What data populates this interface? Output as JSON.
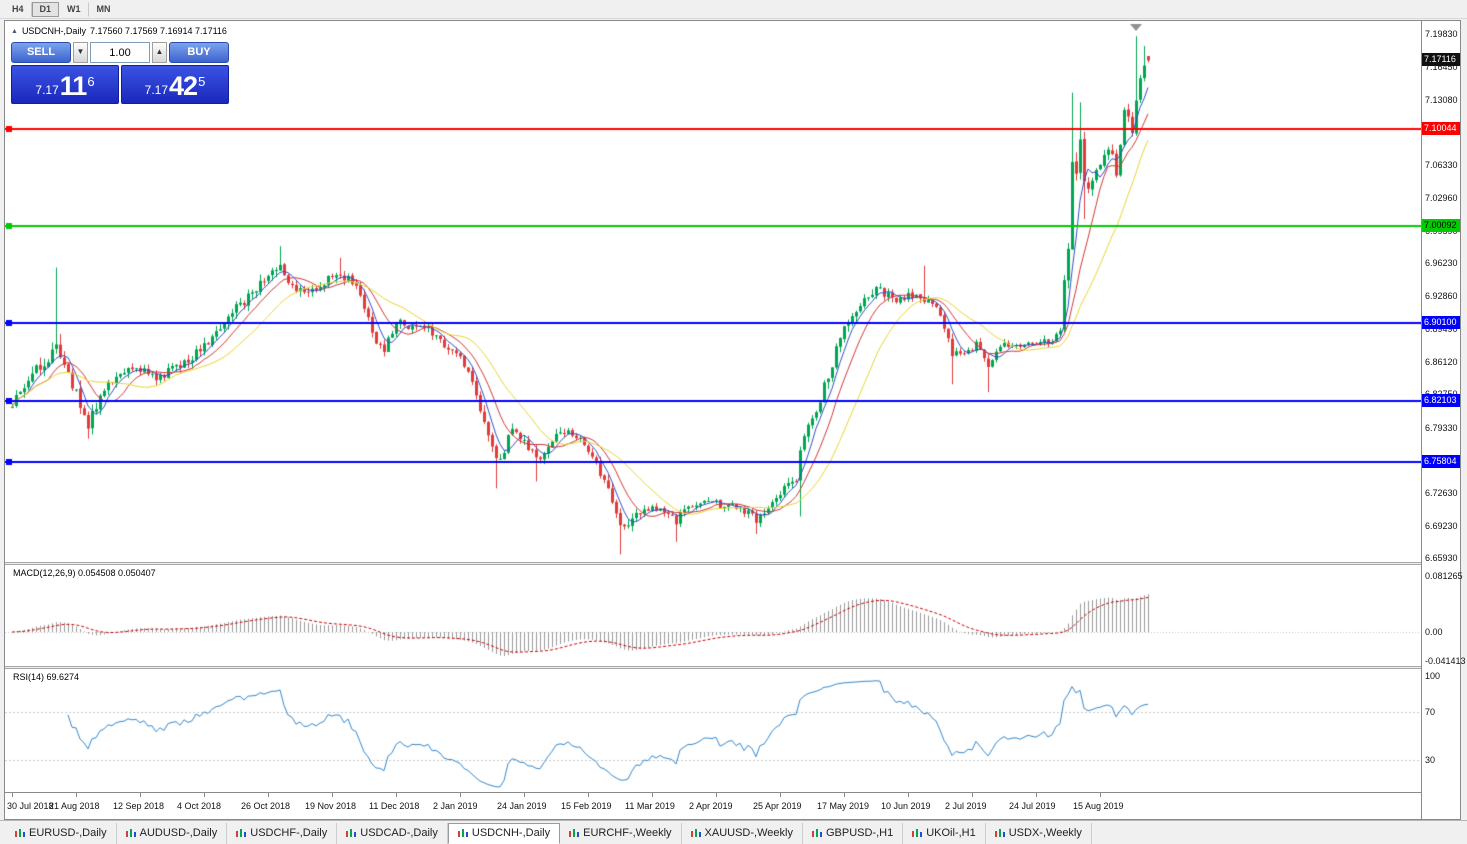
{
  "icons": {
    "title_marker": "▲",
    "spinner_down": "▼",
    "spinner_up": "▲"
  },
  "toolbar": {
    "timeframes": [
      {
        "label": "H4",
        "active": false
      },
      {
        "label": "D1",
        "active": true
      },
      {
        "label": "W1",
        "active": false
      },
      {
        "label": "MN",
        "active": false
      }
    ]
  },
  "chart_header": {
    "symbol": "USDCNH-,Daily",
    "ohlc": "7.17560 7.17569 7.16914 7.17116"
  },
  "one_click_trading": {
    "sell_label": "SELL",
    "buy_label": "BUY",
    "volume": "1.00",
    "bid": {
      "prefix": "7.17",
      "big": "11",
      "sup": "6"
    },
    "ask": {
      "prefix": "7.17",
      "big": "42",
      "sup": "5"
    }
  },
  "price_scale": {
    "top_price": 7.1983,
    "bottom_price": 6.6593,
    "labels": [
      "7.19830",
      "7.16450",
      "7.13080",
      "7.09710",
      "7.06330",
      "7.02960",
      "6.99590",
      "6.96230",
      "6.92860",
      "6.89490",
      "6.86120",
      "6.82750",
      "6.79330",
      "6.75960",
      "6.72630",
      "6.69230",
      "6.65930"
    ]
  },
  "levels": [
    {
      "price": 7.10044,
      "label": "7.10044",
      "color": "#ff0000",
      "text": "#ffffff"
    },
    {
      "price": 7.00092,
      "label": "7.00092",
      "color": "#00cc00",
      "text": "#000000"
    },
    {
      "price": 6.901,
      "label": "6.90100",
      "color": "#0000ff",
      "text": "#ffffff"
    },
    {
      "price": 6.82103,
      "label": "6.82103",
      "color": "#0000ff",
      "text": "#ffffff"
    },
    {
      "price": 6.75804,
      "label": "6.75804",
      "color": "#0000ff",
      "text": "#ffffff"
    }
  ],
  "current_price": {
    "value": 7.17116,
    "label": "7.17116",
    "bg": "#111111",
    "text": "#ffffff"
  },
  "macd_panel": {
    "label": "MACD(12,26,9) 0.054508 0.050407",
    "scale_labels": [
      {
        "text": "0.081265",
        "value": 0.081265
      },
      {
        "text": "0.00",
        "value": 0
      },
      {
        "text": "-0.041413",
        "value": -0.041413
      }
    ]
  },
  "rsi_panel": {
    "label": "RSI(14) 69.6274",
    "scale_labels": [
      {
        "text": "100",
        "value": 100
      },
      {
        "text": "70",
        "value": 70
      },
      {
        "text": "30",
        "value": 30
      }
    ],
    "levels": [
      70,
      30
    ]
  },
  "date_axis": {
    "tick_interval": 16,
    "labels": [
      "30 Jul 2018",
      "21 Aug 2018",
      "12 Sep 2018",
      "4 Oct 2018",
      "26 Oct 2018",
      "19 Nov 2018",
      "11 Dec 2018",
      "2 Jan 2019",
      "24 Jan 2019",
      "15 Feb 2019",
      "11 Mar 2019",
      "2 Apr 2019",
      "25 Apr 2019",
      "17 May 2019",
      "10 Jun 2019",
      "2 Jul 2019",
      "24 Jul 2019",
      "15 Aug 2019"
    ]
  },
  "tabs": [
    {
      "label": "EURUSD-,Daily",
      "active": false
    },
    {
      "label": "AUDUSD-,Daily",
      "active": false
    },
    {
      "label": "USDCHF-,Daily",
      "active": false
    },
    {
      "label": "USDCAD-,Daily",
      "active": false
    },
    {
      "label": "USDCNH-,Daily",
      "active": true
    },
    {
      "label": "EURCHF-,Weekly",
      "active": false
    },
    {
      "label": "XAUUSD-,Weekly",
      "active": false
    },
    {
      "label": "GBPUSD-,H1",
      "active": false
    },
    {
      "label": "UKOil-,H1",
      "active": false
    },
    {
      "label": "USDX-,Weekly",
      "active": false
    }
  ],
  "chart_data": {
    "type": "candlestick",
    "symbol": "USDCNH",
    "timeframe": "Daily",
    "visible_range": [
      "30 Jul 2018",
      "Sep 2019"
    ],
    "price_range": [
      6.6593,
      7.1983
    ],
    "candle_count": 285,
    "up_color": "#00a651",
    "down_color": "#e03c3c",
    "last_candle": {
      "open": 7.1756,
      "high": 7.17569,
      "low": 7.16914,
      "close": 7.17116
    },
    "trend_anchors": [
      [
        0,
        6.815,
        0.016
      ],
      [
        4,
        6.842,
        0.016
      ],
      [
        8,
        6.86,
        0.02
      ],
      [
        11,
        6.882,
        0.026
      ],
      [
        14,
        6.845,
        0.022
      ],
      [
        19,
        6.798,
        0.018
      ],
      [
        24,
        6.842,
        0.014
      ],
      [
        30,
        6.858,
        0.013
      ],
      [
        36,
        6.842,
        0.012
      ],
      [
        42,
        6.858,
        0.013
      ],
      [
        48,
        6.875,
        0.014
      ],
      [
        54,
        6.908,
        0.015
      ],
      [
        60,
        6.932,
        0.014
      ],
      [
        64,
        6.948,
        0.016
      ],
      [
        67,
        6.962,
        0.018
      ],
      [
        70,
        6.938,
        0.015
      ],
      [
        74,
        6.93,
        0.013
      ],
      [
        78,
        6.945,
        0.013
      ],
      [
        82,
        6.952,
        0.013
      ],
      [
        86,
        6.938,
        0.012
      ],
      [
        90,
        6.892,
        0.016
      ],
      [
        93,
        6.872,
        0.014
      ],
      [
        96,
        6.902,
        0.012
      ],
      [
        100,
        6.898,
        0.011
      ],
      [
        104,
        6.895,
        0.011
      ],
      [
        108,
        6.878,
        0.012
      ],
      [
        112,
        6.868,
        0.013
      ],
      [
        116,
        6.825,
        0.016
      ],
      [
        119,
        6.785,
        0.016
      ],
      [
        122,
        6.758,
        0.015
      ],
      [
        125,
        6.792,
        0.013
      ],
      [
        128,
        6.782,
        0.012
      ],
      [
        131,
        6.758,
        0.013
      ],
      [
        134,
        6.772,
        0.012
      ],
      [
        137,
        6.79,
        0.012
      ],
      [
        141,
        6.785,
        0.011
      ],
      [
        144,
        6.768,
        0.012
      ],
      [
        148,
        6.742,
        0.013
      ],
      [
        151,
        6.7,
        0.016
      ],
      [
        154,
        6.692,
        0.014
      ],
      [
        158,
        6.712,
        0.011
      ],
      [
        162,
        6.71,
        0.01
      ],
      [
        166,
        6.698,
        0.011
      ],
      [
        170,
        6.715,
        0.01
      ],
      [
        174,
        6.718,
        0.01
      ],
      [
        178,
        6.712,
        0.01
      ],
      [
        182,
        6.712,
        0.01
      ],
      [
        186,
        6.698,
        0.011
      ],
      [
        190,
        6.718,
        0.011
      ],
      [
        193,
        6.732,
        0.012
      ],
      [
        196,
        6.742,
        0.014
      ],
      [
        198,
        6.788,
        0.018
      ],
      [
        201,
        6.805,
        0.015
      ],
      [
        204,
        6.848,
        0.016
      ],
      [
        208,
        6.898,
        0.016
      ],
      [
        212,
        6.922,
        0.014
      ],
      [
        216,
        6.938,
        0.013
      ],
      [
        220,
        6.925,
        0.012
      ],
      [
        224,
        6.93,
        0.012
      ],
      [
        228,
        6.928,
        0.014
      ],
      [
        232,
        6.908,
        0.013
      ],
      [
        235,
        6.868,
        0.014
      ],
      [
        238,
        6.872,
        0.012
      ],
      [
        241,
        6.878,
        0.011
      ],
      [
        244,
        6.858,
        0.012
      ],
      [
        247,
        6.878,
        0.01
      ],
      [
        251,
        6.875,
        0.009
      ],
      [
        255,
        6.88,
        0.009
      ],
      [
        259,
        6.882,
        0.009
      ],
      [
        262,
        6.89,
        0.01
      ],
      [
        264,
        6.988,
        0.03
      ],
      [
        265,
        7.068,
        0.03
      ],
      [
        266,
        7.052,
        0.024
      ],
      [
        267,
        7.088,
        0.022
      ],
      [
        268,
        7.038,
        0.022
      ],
      [
        270,
        7.052,
        0.018
      ],
      [
        272,
        7.062,
        0.016
      ],
      [
        274,
        7.082,
        0.014
      ],
      [
        276,
        7.058,
        0.014
      ],
      [
        278,
        7.118,
        0.016
      ],
      [
        280,
        7.102,
        0.014
      ],
      [
        282,
        7.152,
        0.016
      ],
      [
        284,
        7.171,
        0.014
      ]
    ],
    "wick_highs": [
      [
        11,
        6.958
      ],
      [
        67,
        6.98
      ],
      [
        82,
        6.968
      ],
      [
        228,
        6.96
      ],
      [
        265,
        7.138
      ],
      [
        267,
        7.128
      ],
      [
        281,
        7.196
      ],
      [
        283,
        7.186
      ]
    ],
    "wick_lows": [
      [
        19,
        6.782
      ],
      [
        121,
        6.731
      ],
      [
        131,
        6.738
      ],
      [
        152,
        6.663
      ],
      [
        166,
        6.676
      ],
      [
        186,
        6.684
      ],
      [
        197,
        6.702
      ],
      [
        235,
        6.838
      ],
      [
        244,
        6.83
      ],
      [
        268,
        7.008
      ]
    ],
    "moving_averages": [
      {
        "type": "sma",
        "period": 5,
        "color": "#3050c8"
      },
      {
        "type": "sma",
        "period": 10,
        "color": "#d03838"
      },
      {
        "type": "sma",
        "period": 20,
        "color": "#e8d535"
      }
    ],
    "indicators": {
      "macd": {
        "fast": 12,
        "slow": 26,
        "signal": 9,
        "value": 0.054508,
        "signal_value": 0.050407,
        "hist_color": "#9a9a9a",
        "signal_color": "#cc0000",
        "range": [
          -0.041413,
          0.081265
        ]
      },
      "rsi": {
        "period": 14,
        "value": 69.6274,
        "color": "#3388cc",
        "range": [
          0,
          100
        ]
      }
    }
  }
}
